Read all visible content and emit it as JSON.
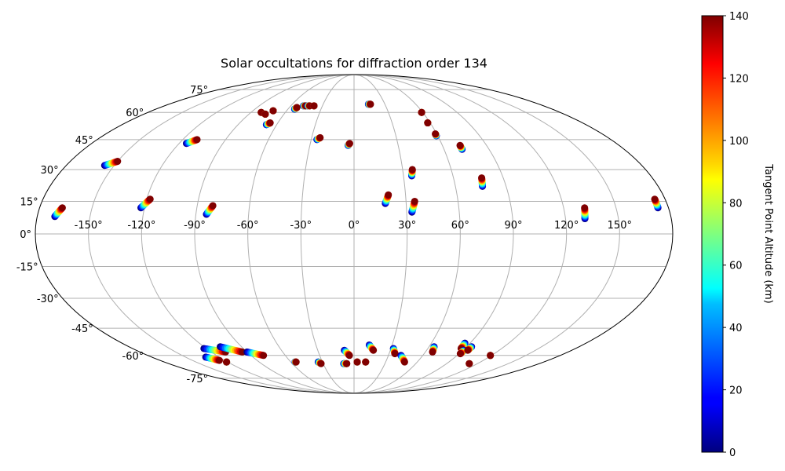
{
  "chart_data": {
    "type": "scatter",
    "projection": "mollweide",
    "title": "Solar occultations for diffraction order 134",
    "x_ticks": [
      -150,
      -120,
      -90,
      -60,
      -30,
      0,
      30,
      60,
      90,
      120,
      150
    ],
    "x_tick_labels": [
      "-150°",
      "-120°",
      "-90°",
      "-60°",
      "-30°",
      "0°",
      "30°",
      "60°",
      "90°",
      "120°",
      "150°"
    ],
    "y_ticks": [
      -75,
      -60,
      -45,
      -30,
      -15,
      0,
      15,
      30,
      45,
      60,
      75
    ],
    "y_tick_labels": [
      "-75°",
      "-60°",
      "-45°",
      "-30°",
      "-15°",
      "0°",
      "15°",
      "30°",
      "45°",
      "60°",
      "75°"
    ],
    "grid": true,
    "colorbar": {
      "label": "Tangent Point Altitude (km)",
      "min": 0,
      "max": 140,
      "ticks": [
        0,
        20,
        40,
        60,
        80,
        100,
        120,
        140
      ],
      "tick_labels": [
        "0",
        "20",
        "40",
        "60",
        "80",
        "100",
        "120",
        "140"
      ],
      "colormap": "jet"
    },
    "tracks": [
      {
        "start_lon": -170,
        "start_lat": 8,
        "end_lon": -167,
        "end_lat": 12
      },
      {
        "start_lon": -156,
        "start_lat": 32,
        "end_lon": -150,
        "end_lat": 34
      },
      {
        "start_lon": -122,
        "start_lat": 12,
        "end_lon": -118,
        "end_lat": 16
      },
      {
        "start_lon": -115,
        "start_lat": 43,
        "end_lon": -110,
        "end_lat": 45
      },
      {
        "start_lon": -84,
        "start_lat": 9,
        "end_lon": -81,
        "end_lat": 13
      },
      {
        "start_lon": -81,
        "start_lat": 60,
        "end_lon": -81,
        "end_lat": 60
      },
      {
        "start_lon": -76,
        "start_lat": 59,
        "end_lon": -76,
        "end_lat": 59
      },
      {
        "start_lon": -72,
        "start_lat": 61,
        "end_lon": -72,
        "end_lat": 61
      },
      {
        "start_lon": -68,
        "start_lat": 53,
        "end_lon": -66,
        "end_lat": 54
      },
      {
        "start_lon": -54,
        "start_lat": 62,
        "end_lon": -53,
        "end_lat": 63
      },
      {
        "start_lon": -48,
        "start_lat": 64,
        "end_lon": -46,
        "end_lat": 64
      },
      {
        "start_lon": -44,
        "start_lat": 64,
        "end_lon": -42,
        "end_lat": 64
      },
      {
        "start_lon": -38,
        "start_lat": 64,
        "end_lon": -38,
        "end_lat": 64
      },
      {
        "start_lon": -26,
        "start_lat": 45,
        "end_lon": -24,
        "end_lat": 46
      },
      {
        "start_lon": -4,
        "start_lat": 42,
        "end_lon": -3,
        "end_lat": 43
      },
      {
        "start_lon": 14,
        "start_lat": 65,
        "end_lon": 16,
        "end_lat": 65
      },
      {
        "start_lon": 18,
        "start_lat": 14,
        "end_lon": 20,
        "end_lat": 18
      },
      {
        "start_lon": 33,
        "start_lat": 10,
        "end_lon": 35,
        "end_lat": 15
      },
      {
        "start_lon": 35,
        "start_lat": 27,
        "end_lon": 36,
        "end_lat": 30
      },
      {
        "start_lon": 59,
        "start_lat": 60,
        "end_lon": 59,
        "end_lat": 60
      },
      {
        "start_lon": 58,
        "start_lat": 54,
        "end_lon": 58,
        "end_lat": 54
      },
      {
        "start_lon": 59,
        "start_lat": 47,
        "end_lon": 59,
        "end_lat": 48
      },
      {
        "start_lon": 72,
        "start_lat": 40,
        "end_lon": 72,
        "end_lat": 42
      },
      {
        "start_lon": 76,
        "start_lat": 22,
        "end_lon": 77,
        "end_lat": 26
      },
      {
        "start_lon": 131,
        "start_lat": 7,
        "end_lon": 132,
        "end_lat": 12
      },
      {
        "start_lon": 174,
        "start_lat": 12,
        "end_lon": 174,
        "end_lat": 16
      },
      {
        "start_lon": -132,
        "start_lat": -61,
        "end_lon": -125,
        "end_lat": -63
      },
      {
        "start_lon": -121,
        "start_lat": -64,
        "end_lon": -121,
        "end_lat": -64
      },
      {
        "start_lon": -122,
        "start_lat": -56,
        "end_lon": -108,
        "end_lat": -58
      },
      {
        "start_lon": -107,
        "start_lat": -55,
        "end_lon": -94,
        "end_lat": -58
      },
      {
        "start_lon": -90,
        "start_lat": -58,
        "end_lon": -79,
        "end_lat": -60
      },
      {
        "start_lon": -56,
        "start_lat": -64,
        "end_lon": -55,
        "end_lat": -64
      },
      {
        "start_lon": -34,
        "start_lat": -64,
        "end_lon": -32,
        "end_lat": -65
      },
      {
        "start_lon": -10,
        "start_lat": -65,
        "end_lon": -7,
        "end_lat": -65
      },
      {
        "start_lon": -8,
        "start_lat": -57,
        "end_lon": -4,
        "end_lat": -60
      },
      {
        "start_lon": 3,
        "start_lat": -64,
        "end_lon": 3,
        "end_lat": -64
      },
      {
        "start_lon": 11,
        "start_lat": -64,
        "end_lon": 11,
        "end_lat": -64
      },
      {
        "start_lon": 12,
        "start_lat": -54,
        "end_lon": 16,
        "end_lat": -57
      },
      {
        "start_lon": 32,
        "start_lat": -56,
        "end_lon": 35,
        "end_lat": -59
      },
      {
        "start_lon": 41,
        "start_lat": -60,
        "end_lon": 48,
        "end_lat": -64
      },
      {
        "start_lon": 64,
        "start_lat": -55,
        "end_lon": 66,
        "end_lat": -58
      },
      {
        "start_lon": 86,
        "start_lat": -53,
        "end_lon": 87,
        "end_lat": -56
      },
      {
        "start_lon": 91,
        "start_lat": -57,
        "end_lon": 91,
        "end_lat": -59
      },
      {
        "start_lon": 94,
        "start_lat": -55,
        "end_lon": 94,
        "end_lat": -57
      },
      {
        "start_lon": 112,
        "start_lat": -65,
        "end_lon": 112,
        "end_lat": -65
      },
      {
        "start_lon": 119,
        "start_lat": -60,
        "end_lon": 119,
        "end_lat": -60
      }
    ]
  }
}
